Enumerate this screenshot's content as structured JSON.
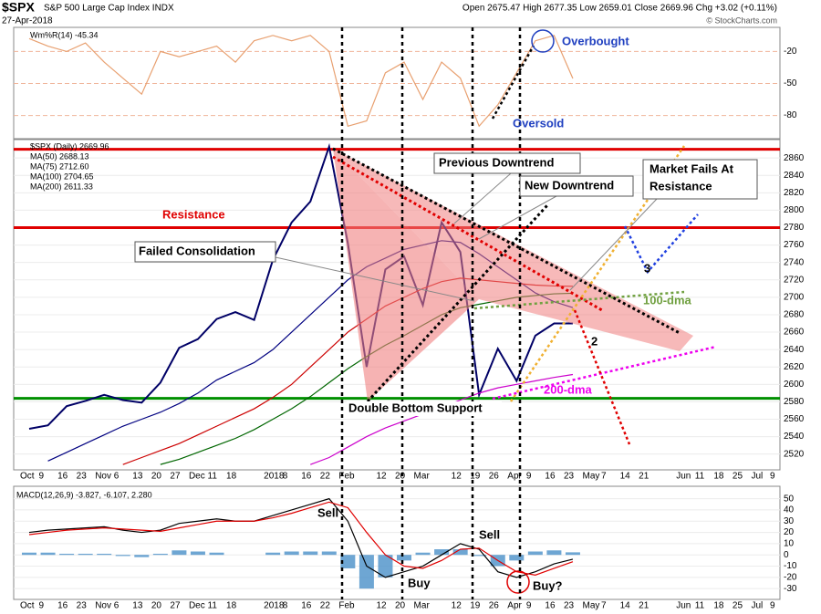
{
  "header": {
    "title": "$SPX",
    "subtitle": "S&P 500 Large Cap Index INDX",
    "date": "27-Apr-2018",
    "ohlc": "Open 2675.47 High 2677.35 Low 2659.01 Close 2669.96 Chg +3.02 (+0.11%)",
    "credit": "© StockCharts.com"
  },
  "annotations": {
    "overbought": "Overbought",
    "oversold": "Oversold",
    "resistance": "Resistance",
    "failed_consolidation": "Failed Consolidation",
    "previous_downtrend": "Previous Downtrend",
    "new_downtrend": "New Downtrend",
    "market_fails": [
      "Market Fails At",
      "Resistance"
    ],
    "three": "3",
    "dma100": "100-dma",
    "two": "2",
    "dma200": "200-dma",
    "double_bottom": "Double Bottom Support",
    "sell1": "Sell",
    "buy1": "Buy",
    "sell2": "Sell",
    "buy2": "Buy?"
  },
  "chart_data": [
    {
      "type": "line",
      "ylim": [
        -100,
        0
      ],
      "yticks": [
        -80,
        -50,
        -20
      ],
      "grid": true,
      "grid_color": "#f0b49a",
      "series": [
        {
          "name": "Wm%R(14) -45.34",
          "color": "#e8a070",
          "values": [
            -8,
            -15,
            -20,
            -12,
            -30,
            -45,
            -60,
            -20,
            -25,
            -20,
            -15,
            -30,
            -10,
            -5,
            -10,
            -5,
            -20,
            -90,
            -85,
            -40,
            -30,
            -65,
            -30,
            -45,
            -90,
            -70,
            -40,
            -10,
            -5,
            -45.34,
            null,
            null,
            null,
            null,
            null,
            null,
            null,
            null,
            null,
            null,
            null
          ]
        }
      ]
    },
    {
      "type": "line",
      "ylim": [
        2505,
        2879
      ],
      "yticks": [
        2520,
        2540,
        2560,
        2580,
        2600,
        2620,
        2640,
        2660,
        2680,
        2700,
        2720,
        2740,
        2760,
        2780,
        2800,
        2820,
        2840,
        2860
      ],
      "grid": true,
      "grid_color": "#ececec",
      "categories": [
        "Oct",
        "9",
        "16",
        "23",
        "Nov",
        "6",
        "13",
        "20",
        "27",
        "Dec",
        "11",
        "18",
        null,
        "2018",
        "8",
        "16",
        "22",
        "Feb",
        null,
        "12",
        "20",
        "Mar",
        null,
        "12",
        "19",
        "26",
        "Apr",
        "9",
        "16",
        "23",
        "May",
        "7",
        "14",
        "21",
        null,
        "Jun",
        "11",
        "18",
        "25",
        "Jul",
        "9"
      ],
      "hlines": [
        {
          "value": 2870,
          "color": "#e00000"
        },
        {
          "value": 2780,
          "color": "#e00000"
        },
        {
          "value": 2584,
          "color": "#009000"
        }
      ],
      "series": [
        {
          "name": "$SPX (Daily) 2669.96",
          "color": "#000066",
          "values": [
            2549,
            2553,
            2575,
            2581,
            2588,
            2582,
            2579,
            2602,
            2642,
            2652,
            2675,
            2683,
            2674,
            2743,
            2786,
            2810,
            2873,
            2762,
            2620,
            2732,
            2747,
            2691,
            2786,
            2752,
            2588,
            2641,
            2604,
            2656,
            2670,
            2669.96,
            null,
            null,
            null,
            null,
            null,
            null,
            null,
            null,
            null,
            null,
            null
          ]
        },
        {
          "name": "MA(50) 2688.13",
          "color": "#000080",
          "values": [
            null,
            2512,
            2522,
            2532,
            2542,
            2552,
            2560,
            2568,
            2578,
            2590,
            2605,
            2615,
            2625,
            2640,
            2660,
            2680,
            2700,
            2720,
            2735,
            2745,
            2755,
            2760,
            2765,
            2763,
            2750,
            2735,
            2720,
            2705,
            2695,
            2688.13,
            null,
            null,
            null,
            null,
            null,
            null,
            null,
            null,
            null,
            null,
            null
          ]
        },
        {
          "name": "MA(75) 2712.60",
          "color": "#cc0000",
          "values": [
            null,
            null,
            null,
            null,
            null,
            2508,
            2516,
            2524,
            2532,
            2542,
            2552,
            2562,
            2572,
            2585,
            2600,
            2620,
            2640,
            2660,
            2675,
            2690,
            2700,
            2710,
            2718,
            2722,
            2720,
            2718,
            2716,
            2714,
            2713,
            2712.6,
            null,
            null,
            null,
            null,
            null,
            null,
            null,
            null,
            null,
            null,
            null
          ]
        },
        {
          "name": "MA(100) 2704.65",
          "color": "#006600",
          "values": [
            null,
            null,
            null,
            null,
            null,
            null,
            null,
            2508,
            2514,
            2522,
            2530,
            2538,
            2548,
            2560,
            2572,
            2586,
            2602,
            2618,
            2632,
            2645,
            2656,
            2668,
            2680,
            2688,
            2692,
            2696,
            2700,
            2702,
            2704,
            2704.65,
            null,
            null,
            null,
            null,
            null,
            null,
            null,
            null,
            null,
            null,
            null
          ]
        },
        {
          "name": "MA(200) 2611.33",
          "color": "#cc00cc",
          "values": [
            null,
            null,
            null,
            null,
            null,
            null,
            null,
            null,
            null,
            null,
            null,
            null,
            null,
            null,
            null,
            2508,
            2516,
            2528,
            2540,
            2550,
            2558,
            2566,
            2574,
            2582,
            2590,
            2596,
            2600,
            2604,
            2608,
            2611.33,
            null,
            null,
            null,
            null,
            null,
            null,
            null,
            null,
            null,
            null,
            null
          ]
        }
      ]
    },
    {
      "type": "line",
      "title": "MACD(12,26,9) -3.827, -6.107, 2.280",
      "ylim": [
        -38,
        57
      ],
      "yticks": [
        -30,
        -20,
        -10,
        0,
        10,
        20,
        30,
        40,
        50
      ],
      "grid": true,
      "grid_color": "#ececec",
      "series": [
        {
          "type": "bar",
          "color": "#4a90c8",
          "values": [
            2,
            2,
            1,
            1,
            1,
            -1,
            -2,
            1,
            4,
            3,
            2,
            0,
            0,
            2,
            3,
            3,
            3,
            -12,
            -30,
            -20,
            -5,
            2,
            5,
            5,
            -1,
            -10,
            -5,
            3,
            4,
            2.28,
            null,
            null,
            null,
            null,
            null,
            null,
            null,
            null,
            null,
            null,
            null
          ]
        },
        {
          "color": "#000000",
          "values": [
            20,
            22,
            23,
            24,
            25,
            22,
            20,
            22,
            28,
            30,
            32,
            30,
            30,
            35,
            40,
            45,
            50,
            30,
            -10,
            -20,
            -15,
            -10,
            0,
            10,
            5,
            -15,
            -20,
            -15,
            -8,
            -3.827,
            null,
            null,
            null,
            null,
            null,
            null,
            null,
            null,
            null,
            null,
            null
          ]
        },
        {
          "color": "#e00000",
          "values": [
            18,
            20,
            22,
            23,
            24,
            23,
            22,
            21,
            24,
            27,
            30,
            30,
            30,
            33,
            37,
            42,
            47,
            42,
            20,
            0,
            -10,
            -12,
            -5,
            5,
            6,
            -5,
            -15,
            -18,
            -12,
            -6.107,
            null,
            null,
            null,
            null,
            null,
            null,
            null,
            null,
            null,
            null,
            null
          ]
        }
      ]
    }
  ]
}
